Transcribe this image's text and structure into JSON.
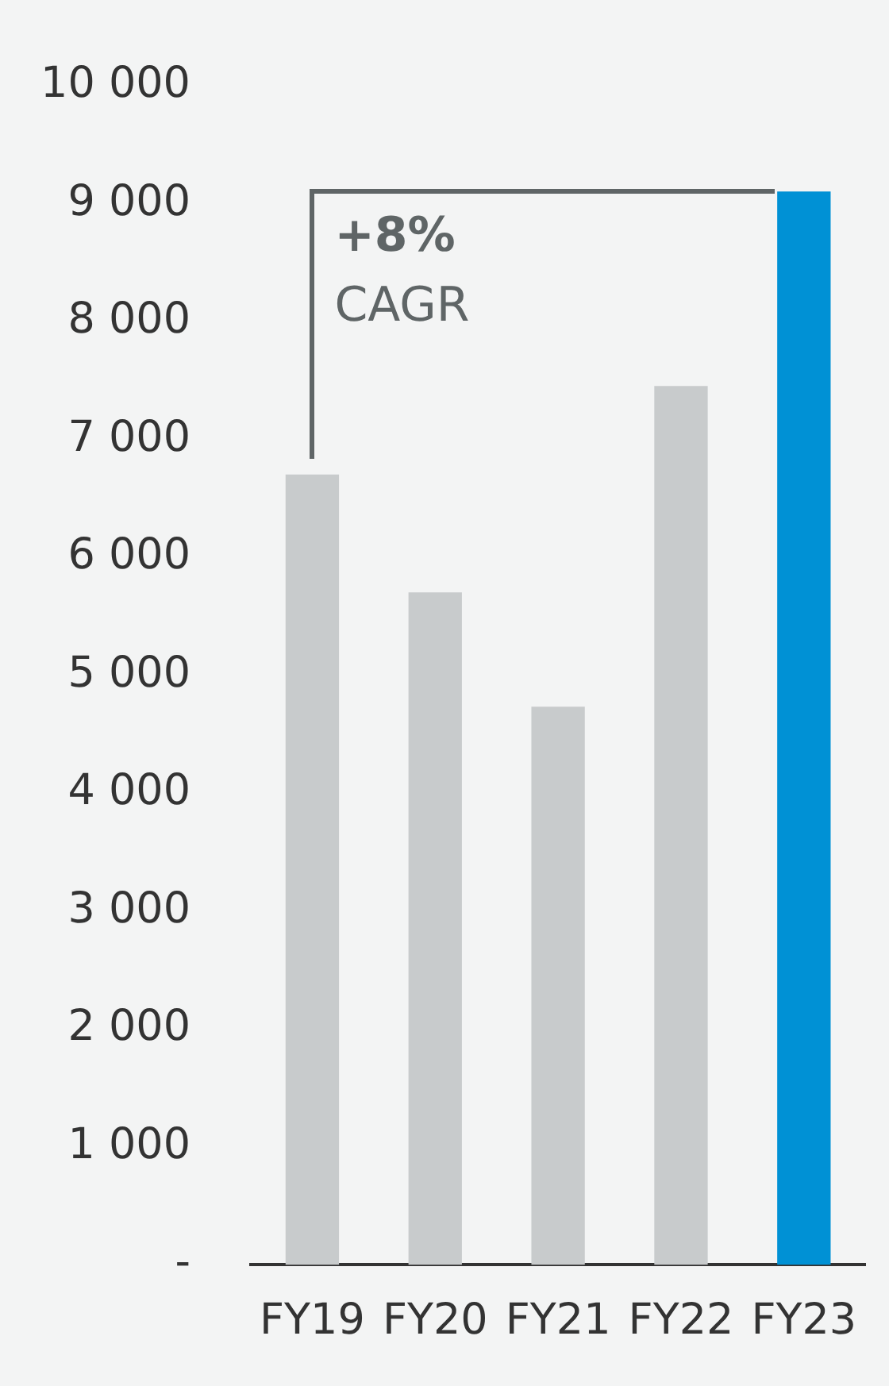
{
  "chart_data": {
    "type": "bar",
    "categories": [
      "FY19",
      "FY20",
      "FY21",
      "FY22",
      "FY23"
    ],
    "values": [
      6700,
      5700,
      4730,
      7450,
      9100
    ],
    "colors": [
      "#c8cbcc",
      "#c8cbcc",
      "#c8cbcc",
      "#c8cbcc",
      "#0091d5"
    ],
    "ylim": [
      0,
      10000
    ],
    "yticks": [
      {
        "value": 0,
        "label": "-"
      },
      {
        "value": 1000,
        "label": "1 000"
      },
      {
        "value": 2000,
        "label": "2 000"
      },
      {
        "value": 3000,
        "label": "3 000"
      },
      {
        "value": 4000,
        "label": "4 000"
      },
      {
        "value": 5000,
        "label": "5 000"
      },
      {
        "value": 6000,
        "label": "6 000"
      },
      {
        "value": 7000,
        "label": "7 000"
      },
      {
        "value": 8000,
        "label": "8 000"
      },
      {
        "value": 9000,
        "label": "9 000"
      },
      {
        "value": 10000,
        "label": "10 000"
      }
    ],
    "legend": false,
    "annotations": [
      "+8%",
      "CAGR"
    ]
  }
}
